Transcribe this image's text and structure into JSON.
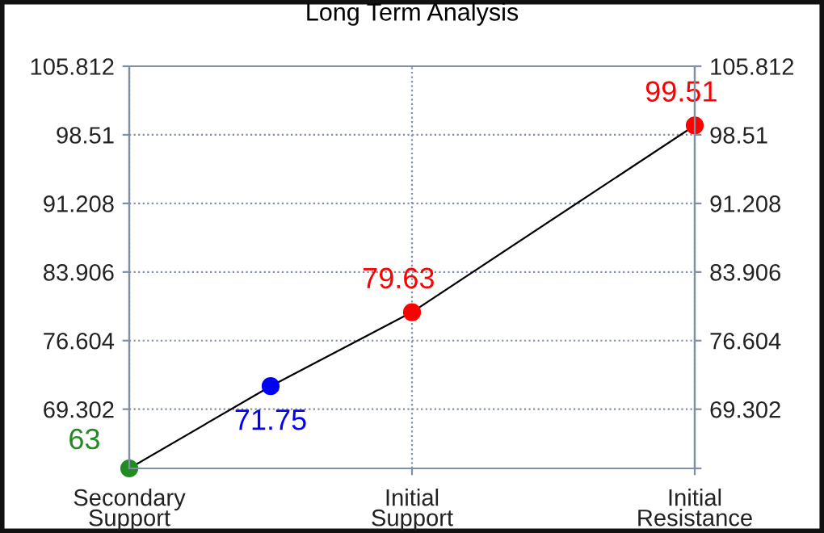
{
  "chart_data": {
    "type": "line",
    "title": "Long Term Analysis",
    "categories": [
      "Secondary\nSupport",
      null,
      "Initial\nSupport",
      null,
      "Initial\nResistance"
    ],
    "series": [
      {
        "color": "#000000",
        "colors": [
          "#228b22",
          "#0000ff",
          "#ff0000",
          null,
          "#ff0000"
        ],
        "values": [
          63,
          71.75,
          79.63,
          null,
          99.51
        ]
      }
    ],
    "ylim": [
      63,
      105.812
    ],
    "yticks": [
      {
        "value": 63,
        "label": null
      },
      69.302,
      76.604,
      83.906,
      91.208,
      98.51,
      105.812
    ],
    "y2lim": [
      63,
      105.812
    ],
    "y2ticks": [
      {
        "value": 63,
        "label": null
      },
      69.302,
      76.604,
      83.906,
      91.208,
      98.51,
      105.812
    ],
    "grid": true,
    "marker": "circle",
    "line_style": "solid",
    "data_labels": true,
    "legend": false
  }
}
